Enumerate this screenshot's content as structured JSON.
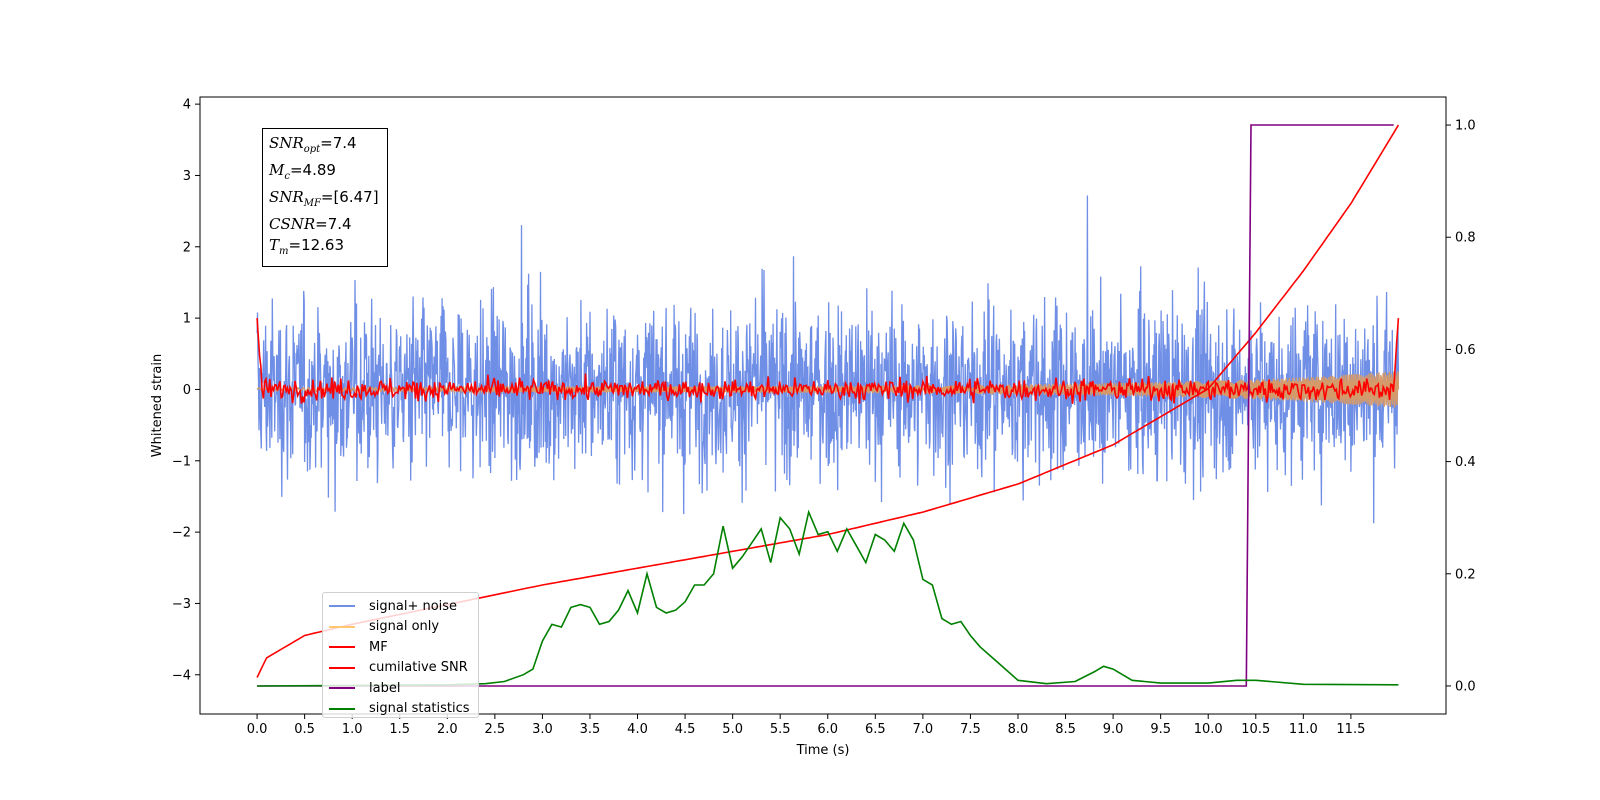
{
  "chart_data": {
    "type": "line",
    "xlabel": "Time (s)",
    "ylabel": "Whitened strain",
    "xlim": [
      -0.6,
      12.5
    ],
    "ylim": [
      -4.55,
      4.1
    ],
    "y2lim": [
      -0.05,
      1.05
    ],
    "x_ticks": [
      "0.0",
      "0.5",
      "1.0",
      "1.5",
      "2.0",
      "2.5",
      "3.0",
      "3.5",
      "4.0",
      "4.5",
      "5.0",
      "5.5",
      "6.0",
      "6.5",
      "7.0",
      "7.5",
      "8.0",
      "8.5",
      "9.0",
      "9.5",
      "10.0",
      "10.5",
      "11.0",
      "11.5"
    ],
    "y_ticks": [
      "4",
      "3",
      "2",
      "1",
      "0",
      "−1",
      "−2",
      "−3",
      "−4"
    ],
    "y2_ticks": [
      "1.0",
      "0.8",
      "0.6",
      "0.4",
      "0.2",
      "0.0"
    ],
    "series": [
      {
        "name": "signal+ noise",
        "axis": "left",
        "color": "#6f8ee6",
        "noise_amplitude": 1.35,
        "x_range": [
          0.0,
          12.0
        ]
      },
      {
        "name": "signal only",
        "axis": "left",
        "color": "#ffc871",
        "envelope_x": [
          0,
          2,
          4,
          6,
          7,
          8,
          9,
          10,
          10.5,
          11,
          11.5,
          12
        ],
        "envelope_amplitude": [
          0.02,
          0.03,
          0.04,
          0.05,
          0.06,
          0.07,
          0.09,
          0.12,
          0.14,
          0.17,
          0.21,
          0.26
        ]
      },
      {
        "name": "MF",
        "axis": "left",
        "color": "#ff0000",
        "x_range": [
          0.0,
          12.0
        ],
        "start_value": 1.0,
        "end_value": 1.0,
        "amplitude": 0.15
      },
      {
        "name": "cumilative SNR",
        "axis": "right",
        "color": "#ff0000",
        "x": [
          0.0,
          0.1,
          0.5,
          1.0,
          2.0,
          3.0,
          4.0,
          5.0,
          6.0,
          7.0,
          8.0,
          9.0,
          10.0,
          10.5,
          11.0,
          11.5,
          12.0
        ],
        "y": [
          0.015,
          0.05,
          0.09,
          0.11,
          0.145,
          0.18,
          0.21,
          0.24,
          0.27,
          0.31,
          0.36,
          0.43,
          0.53,
          0.63,
          0.74,
          0.86,
          1.0
        ]
      },
      {
        "name": "label",
        "axis": "right",
        "color": "#800080",
        "x": [
          0.0,
          10.4,
          10.45,
          11.95
        ],
        "y": [
          0.0,
          0.0,
          1.0,
          1.0
        ]
      },
      {
        "name": "signal statistics",
        "axis": "right",
        "color": "#008000",
        "x": [
          0.0,
          1.0,
          2.0,
          2.4,
          2.6,
          2.8,
          2.9,
          3.0,
          3.1,
          3.2,
          3.3,
          3.4,
          3.5,
          3.6,
          3.7,
          3.8,
          3.9,
          4.0,
          4.1,
          4.2,
          4.3,
          4.4,
          4.5,
          4.6,
          4.7,
          4.8,
          4.9,
          5.0,
          5.1,
          5.2,
          5.3,
          5.4,
          5.5,
          5.6,
          5.7,
          5.8,
          5.9,
          6.0,
          6.1,
          6.2,
          6.3,
          6.4,
          6.5,
          6.6,
          6.7,
          6.8,
          6.9,
          7.0,
          7.1,
          7.2,
          7.3,
          7.4,
          7.5,
          7.6,
          7.8,
          8.0,
          8.3,
          8.6,
          8.8,
          8.9,
          9.0,
          9.2,
          9.5,
          10.0,
          10.3,
          10.5,
          11.0,
          12.0
        ],
        "y": [
          0.0,
          0.001,
          0.002,
          0.004,
          0.008,
          0.02,
          0.03,
          0.08,
          0.11,
          0.105,
          0.14,
          0.145,
          0.14,
          0.11,
          0.115,
          0.135,
          0.17,
          0.13,
          0.2,
          0.14,
          0.13,
          0.135,
          0.15,
          0.18,
          0.18,
          0.2,
          0.285,
          0.21,
          0.23,
          0.255,
          0.28,
          0.22,
          0.3,
          0.28,
          0.235,
          0.31,
          0.27,
          0.275,
          0.24,
          0.28,
          0.25,
          0.22,
          0.27,
          0.26,
          0.24,
          0.29,
          0.26,
          0.19,
          0.18,
          0.12,
          0.11,
          0.115,
          0.09,
          0.07,
          0.04,
          0.01,
          0.004,
          0.008,
          0.025,
          0.035,
          0.03,
          0.01,
          0.005,
          0.005,
          0.01,
          0.01,
          0.003,
          0.002
        ]
      }
    ],
    "legend_position": "lower-left",
    "annotation": {
      "lines": [
        {
          "sym": "SNR",
          "sub": "opt",
          "text": "=7.4"
        },
        {
          "sym": "M",
          "sub": "c",
          "text": "=4.89"
        },
        {
          "sym": "SNR",
          "sub": "MF",
          "text": "=[6.47]"
        },
        {
          "sym": "CSNR",
          "sub": "",
          "text": "=7.4"
        },
        {
          "sym": "T",
          "sub": "m",
          "text": "=12.63"
        }
      ]
    }
  }
}
